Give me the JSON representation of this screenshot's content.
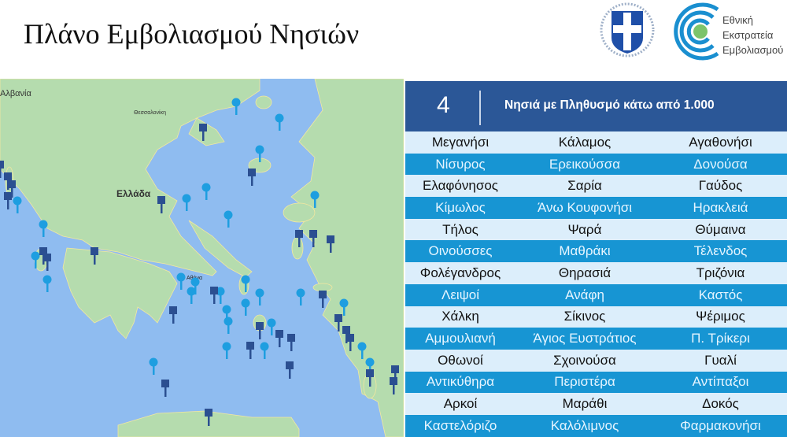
{
  "title": "Πλάνο Εμβολιασμού Νησιών",
  "logo": {
    "text_lines": [
      "Εθνική",
      "Εκστρατεία",
      "Εμβολιασμού"
    ],
    "emblem": "greek-coat-of-arms"
  },
  "map": {
    "labels": {
      "albania": "Αλβανία",
      "thessaloniki": "Θεσσαλονίκη",
      "greece": "Ελλάδα",
      "athens": "Αθήνα"
    },
    "colors": {
      "sea": "#8fbcf0",
      "land": "#b5dcae",
      "pin": "#1e9ee0",
      "flag": "#2b4f91"
    }
  },
  "panel": {
    "number": "4",
    "heading": "Νησιά με Πληθυσμό κάτω από 1.000",
    "colors": {
      "header": "#2b5797",
      "row_light": "#dceefb",
      "row_blue": "#1795d3"
    },
    "rows": [
      [
        "Μεγανήσι",
        "Κάλαμος",
        "Αγαθονήσι"
      ],
      [
        "Νίσυρος",
        "Ερεικούσσα",
        "Δονούσα"
      ],
      [
        "Ελαφόνησος",
        "Σαρία",
        "Γαύδος"
      ],
      [
        "Κίμωλος",
        "Άνω Κουφονήσι",
        "Ηρακλειά"
      ],
      [
        "Τήλος",
        "Ψαρά",
        "Θύμαινα"
      ],
      [
        "Οινούσσες",
        "Μαθράκι",
        "Τέλενδος"
      ],
      [
        "Φολέγανδρος",
        "Θηρασιά",
        "Τριζόνια"
      ],
      [
        "Λειψοί",
        "Ανάφη",
        "Καστός"
      ],
      [
        "Χάλκη",
        "Σίκινος",
        "Ψέριμος"
      ],
      [
        "Αμμουλιανή",
        "Άγιος Ευστράτιος",
        "Π. Τρίκερι"
      ],
      [
        "Οθωνοί",
        "Σχοινούσα",
        "Γυαλί"
      ],
      [
        "Αντικύθηρα",
        "Περιστέρα",
        "Αντίπαξοι"
      ],
      [
        "Αρκοί",
        "Μαράθι",
        "Δοκός"
      ],
      [
        "Καστελόριζο",
        "Καλόλιμνος",
        "Φαρμακονήσι"
      ]
    ]
  }
}
